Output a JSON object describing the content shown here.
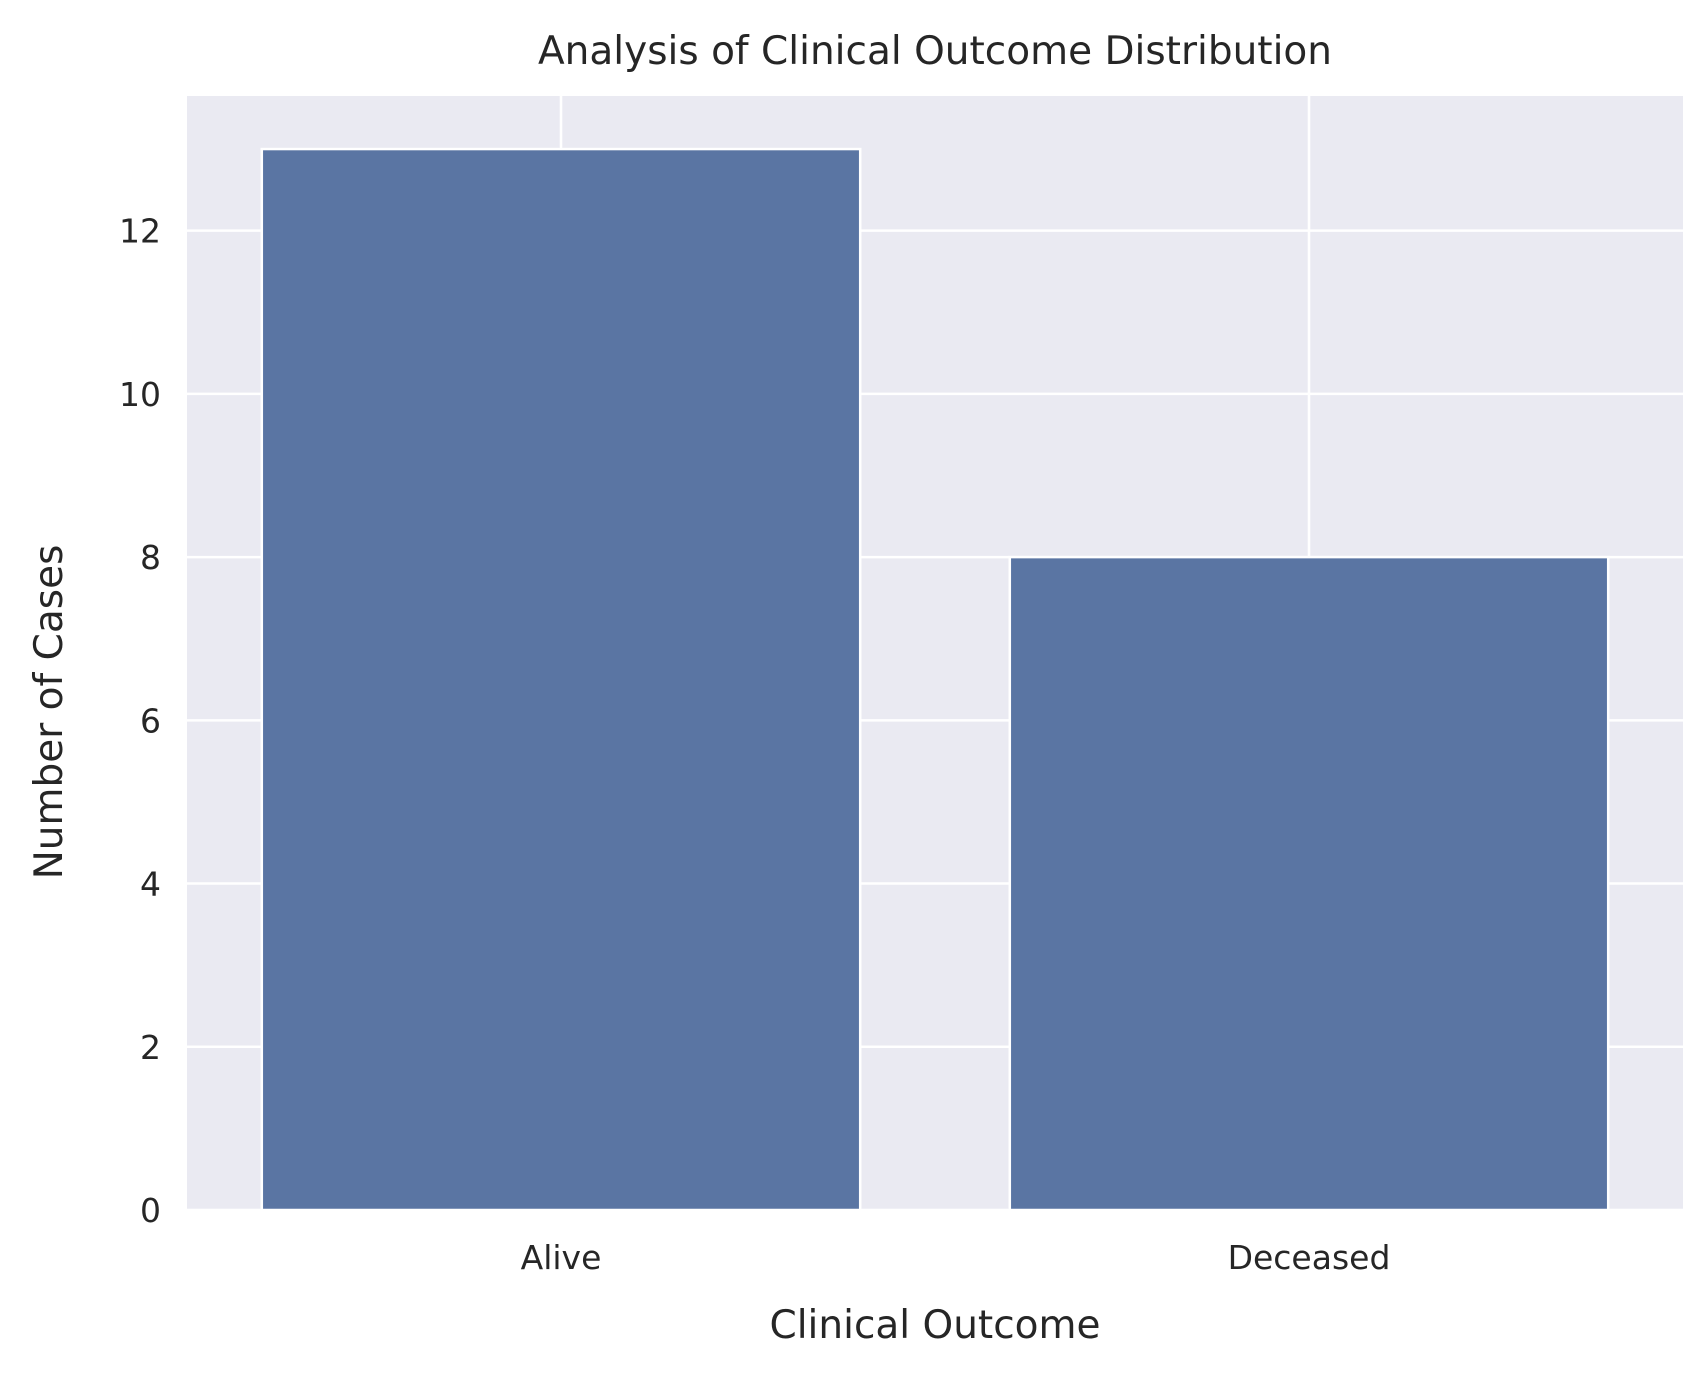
{
  "chart_data": {
    "type": "bar",
    "title": "Analysis of Clinical Outcome Distribution",
    "xlabel": "Clinical Outcome",
    "ylabel": "Number of Cases",
    "categories": [
      "Alive",
      "Deceased"
    ],
    "values": [
      13,
      8
    ],
    "ylim": [
      0,
      13.65
    ],
    "yticks": [
      0,
      2,
      4,
      6,
      8,
      10,
      12
    ],
    "grid": true,
    "legend": "none",
    "colors": {
      "bar": "#5a75a3",
      "plot_background": "#eaeaf2",
      "grid": "#ffffff",
      "text": "#262626"
    }
  }
}
